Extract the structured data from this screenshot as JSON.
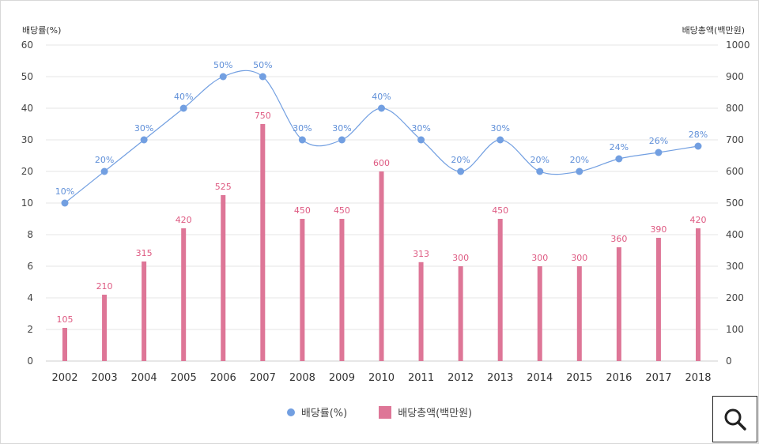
{
  "chart_data": {
    "type": "bar",
    "categories": [
      "2002",
      "2003",
      "2004",
      "2005",
      "2006",
      "2007",
      "2008",
      "2009",
      "2010",
      "2011",
      "2012",
      "2013",
      "2014",
      "2015",
      "2016",
      "2017",
      "2018"
    ],
    "y_left_label": "배당률(%)",
    "y_right_label": "배당총액(백만원)",
    "y_left_ticks": [
      "0",
      "2",
      "4",
      "6",
      "8",
      "10",
      "20",
      "30",
      "40",
      "50",
      "60"
    ],
    "y_right_ticks": [
      "0",
      "100",
      "200",
      "300",
      "400",
      "500",
      "600",
      "700",
      "800",
      "900",
      "1000"
    ],
    "y_right_range": [
      0,
      1000
    ],
    "series": [
      {
        "name": "배당률(%)",
        "type": "line",
        "axis": "left",
        "values": [
          10,
          20,
          30,
          40,
          50,
          50,
          30,
          30,
          40,
          30,
          20,
          30,
          20,
          20,
          24,
          26,
          28
        ],
        "labels": [
          "10%",
          "20%",
          "30%",
          "40%",
          "50%",
          "50%",
          "30%",
          "30%",
          "40%",
          "30%",
          "20%",
          "30%",
          "20%",
          "20%",
          "24%",
          "26%",
          "28%"
        ],
        "color": "#729fe1"
      },
      {
        "name": "배당총액(백만원)",
        "type": "bar",
        "axis": "right",
        "values": [
          105,
          210,
          315,
          420,
          525,
          750,
          450,
          450,
          600,
          313,
          300,
          450,
          300,
          300,
          360,
          390,
          420
        ],
        "labels": [
          "105",
          "210",
          "315",
          "420",
          "525",
          "750",
          "450",
          "450",
          "600",
          "313",
          "300",
          "450",
          "300",
          "300",
          "360",
          "390",
          "420"
        ],
        "color": "#de7697"
      }
    ],
    "legend_position": "bottom-center",
    "grid": true
  },
  "legend": {
    "rate_label": "배당률(%)",
    "total_label": "배당총액(백만원)"
  },
  "zoom_button": {
    "icon": "magnifier-icon"
  }
}
